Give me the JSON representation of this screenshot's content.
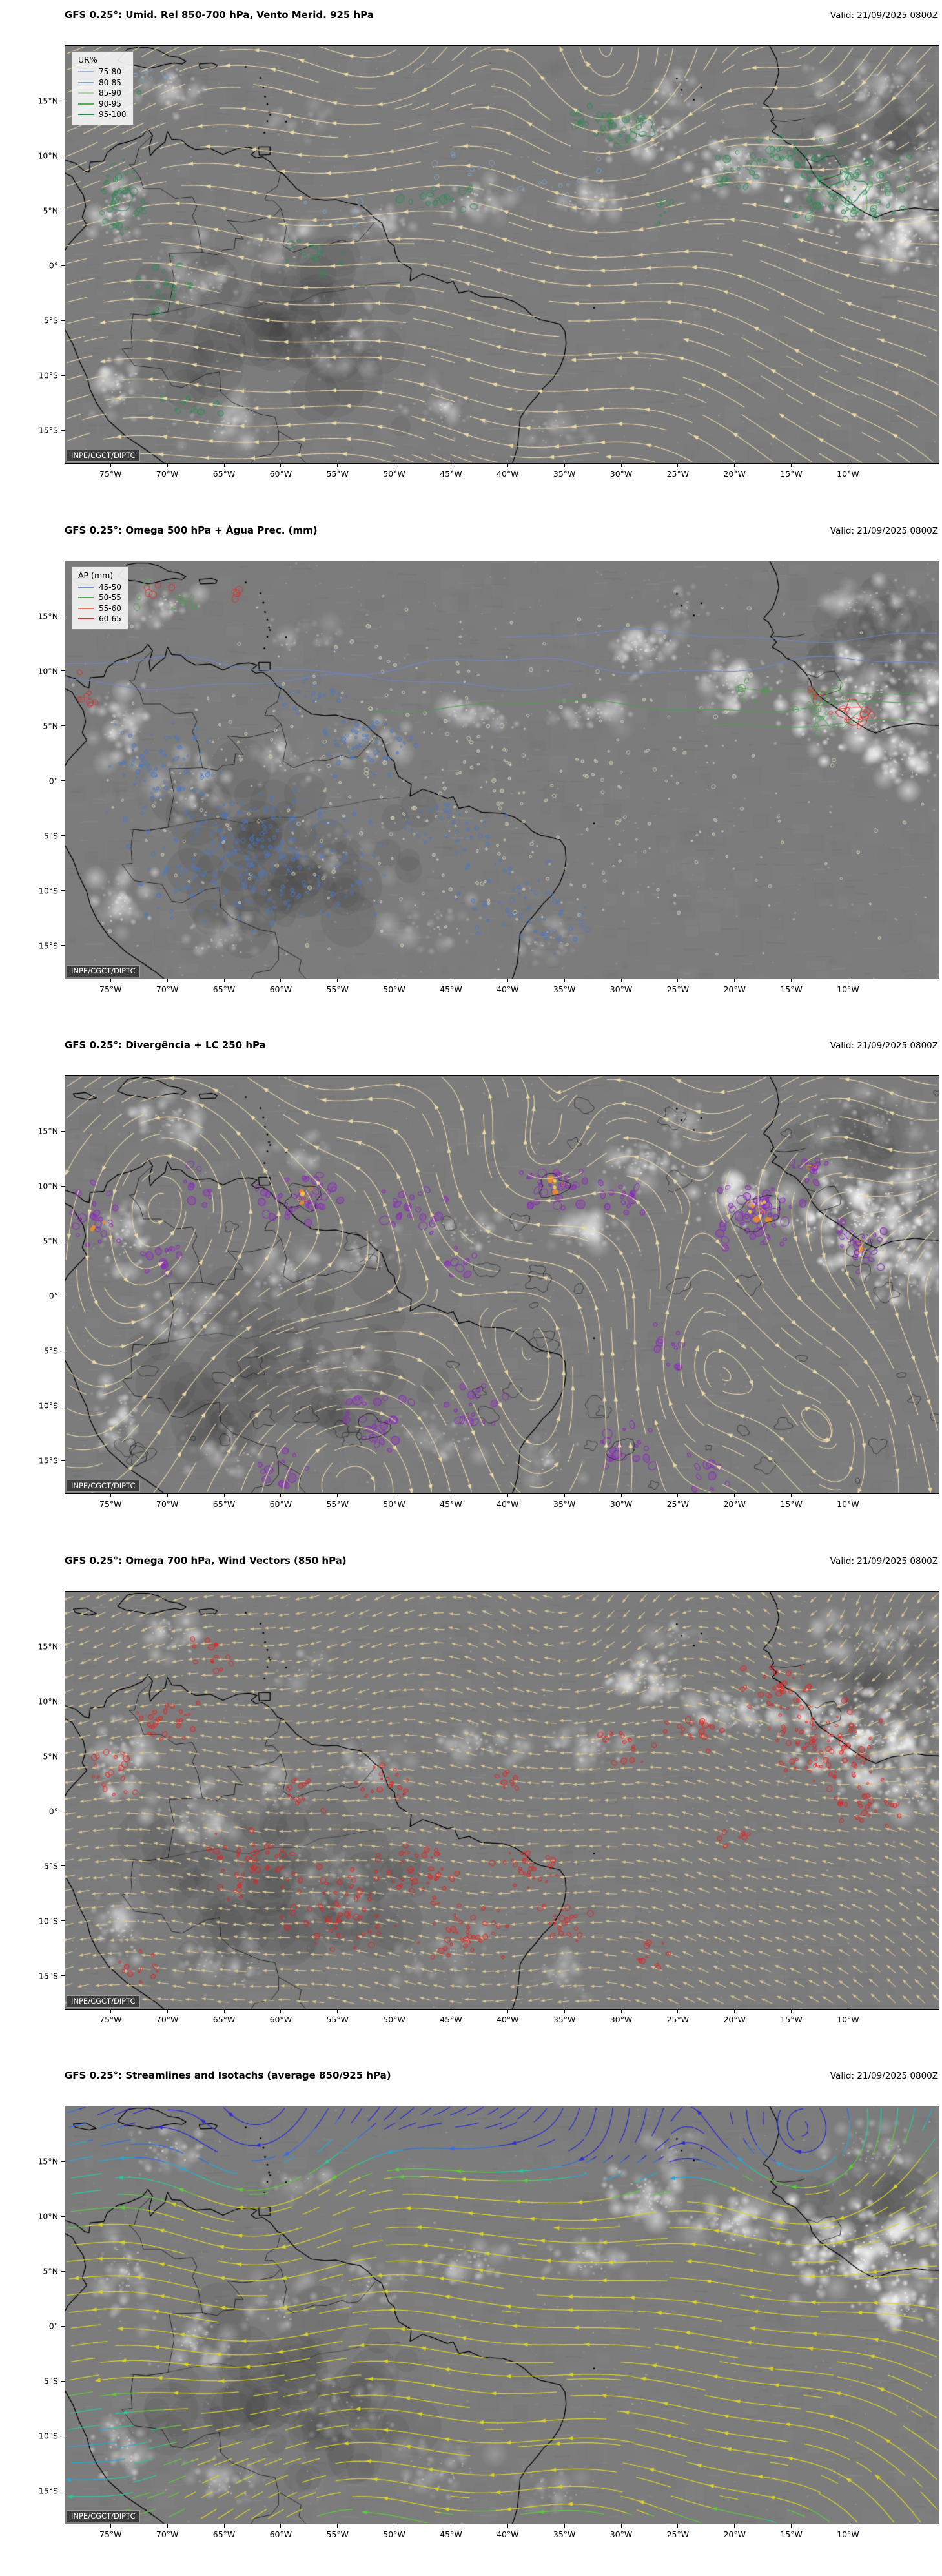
{
  "axes": {
    "lat_ticks": [
      {
        "deg": 15,
        "label": "15°N"
      },
      {
        "deg": 10,
        "label": "10°N"
      },
      {
        "deg": 5,
        "label": "5°N"
      },
      {
        "deg": 0,
        "label": "0°"
      },
      {
        "deg": -5,
        "label": "5°S"
      },
      {
        "deg": -10,
        "label": "10°S"
      },
      {
        "deg": -15,
        "label": "15°S"
      }
    ],
    "lon_ticks": [
      {
        "deg": -75,
        "label": "75°W"
      },
      {
        "deg": -70,
        "label": "70°W"
      },
      {
        "deg": -65,
        "label": "65°W"
      },
      {
        "deg": -60,
        "label": "60°W"
      },
      {
        "deg": -55,
        "label": "55°W"
      },
      {
        "deg": -50,
        "label": "50°W"
      },
      {
        "deg": -45,
        "label": "45°W"
      },
      {
        "deg": -40,
        "label": "40°W"
      },
      {
        "deg": -35,
        "label": "35°W"
      },
      {
        "deg": -30,
        "label": "30°W"
      },
      {
        "deg": -25,
        "label": "25°W"
      },
      {
        "deg": -20,
        "label": "20°W"
      },
      {
        "deg": -15,
        "label": "15°W"
      },
      {
        "deg": -10,
        "label": "10°W"
      }
    ]
  },
  "panels": [
    {
      "title": "GFS 0.25°: Umid. Rel 850-700 hPa, Vento Merid. 925 hPa",
      "valid": "Valid: 21/09/2025 0800Z",
      "credit": "INPE/CGCT/DIPTC",
      "legend": {
        "title": "UR%",
        "items": [
          {
            "label": "75-80",
            "color": "#9db4d8"
          },
          {
            "label": "80-85",
            "color": "#7fa6cc"
          },
          {
            "label": "85-90",
            "color": "#a9d9a0"
          },
          {
            "label": "90-95",
            "color": "#55b055"
          },
          {
            "label": "95-100",
            "color": "#2e8b57"
          }
        ]
      }
    },
    {
      "title": "GFS 0.25°: Omega 500 hPa + Água Prec. (mm)",
      "valid": "Valid: 21/09/2025 0800Z",
      "credit": "INPE/CGCT/DIPTC",
      "legend": {
        "title": "AP (mm)",
        "items": [
          {
            "label": "45-50",
            "color": "#6f86c9"
          },
          {
            "label": "50-55",
            "color": "#4aa04a"
          },
          {
            "label": "55-60",
            "color": "#e07858"
          },
          {
            "label": "60-65",
            "color": "#d83030"
          }
        ]
      }
    },
    {
      "title": "GFS 0.25°: Divergência + LC 250 hPa",
      "valid": "Valid: 21/09/2025 0800Z",
      "credit": "INPE/CGCT/DIPTC",
      "legend": null
    },
    {
      "title": "GFS 0.25°: Omega 700 hPa, Wind Vectors (850 hPa)",
      "valid": "Valid: 21/09/2025 0800Z",
      "credit": "INPE/CGCT/DIPTC",
      "legend": null
    },
    {
      "title": "GFS 0.25°: Streamlines and Isotachs (average 850/925 hPa)",
      "valid": "Valid: 21/09/2025 0800Z",
      "credit": "INPE/CGCT/DIPTC",
      "legend": null
    }
  ],
  "colors": {
    "background": "#ffffff",
    "map_base_gray": "#7c7c7c",
    "coastline": "#000000",
    "stream_tan": "#ead8a8",
    "vector_tan": "#d9c493",
    "rh_contour_green": "#2e8b57",
    "rh_contour_green_light": "#55b055",
    "rh_contour_blue": "#7fa6cc",
    "omega_up_blue": "#4a78c8",
    "omega_contour_cream": "#e9e3c6",
    "ap_blue": "#6f86c9",
    "ap_green": "#4aa04a",
    "ap_red": "#d83030",
    "divergence_purple": "#8a30b8",
    "divergence_orange": "#ff9020",
    "divergence_yellow": "#ffd84a",
    "omega700_red": "#e82020",
    "isotach_palette": [
      "#2b2bd4",
      "#2f6fe8",
      "#27a7d8",
      "#2bc9a0",
      "#5ecb3c",
      "#d8d32a"
    ],
    "credit_bg": "#3d3d3d",
    "credit_text": "#ffffff"
  }
}
